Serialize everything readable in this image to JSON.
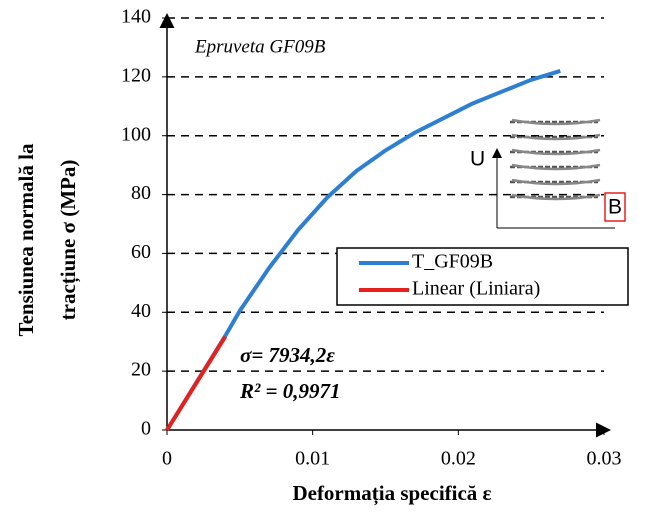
{
  "chart_data": {
    "type": "line",
    "title": "Epruveta GF09B",
    "xlabel": "Deformația specifică ε",
    "ylabel": [
      "Tensiunea normală la",
      "tracțiune σ (MPa)"
    ],
    "annotations": [
      "σ= 7934,2ε",
      "R² = 0,9971"
    ],
    "inset_labels": [
      "U",
      "B"
    ],
    "series": [
      {
        "name": "T_GF09B",
        "color": "#2f7fd0",
        "x": [
          0,
          0.001,
          0.002,
          0.003,
          0.004,
          0.005,
          0.007,
          0.009,
          0.011,
          0.013,
          0.015,
          0.017,
          0.019,
          0.021,
          0.023,
          0.025,
          0.027
        ],
        "y": [
          0,
          8,
          16,
          24,
          32,
          40.5,
          55,
          68,
          79,
          88,
          95,
          101,
          106,
          111,
          115,
          119,
          122
        ]
      },
      {
        "name": "Linear (Liniara)",
        "color": "#e8201c",
        "x": [
          0,
          0.004
        ],
        "y": [
          0,
          31.7
        ]
      }
    ],
    "xlim": [
      0,
      0.03
    ],
    "xticks": [
      0,
      0.01,
      0.02,
      0.03
    ],
    "ylim": [
      0,
      140
    ],
    "yticks": [
      0,
      20,
      40,
      60,
      80,
      100,
      120,
      140
    ],
    "grid": true,
    "legend": "right"
  }
}
